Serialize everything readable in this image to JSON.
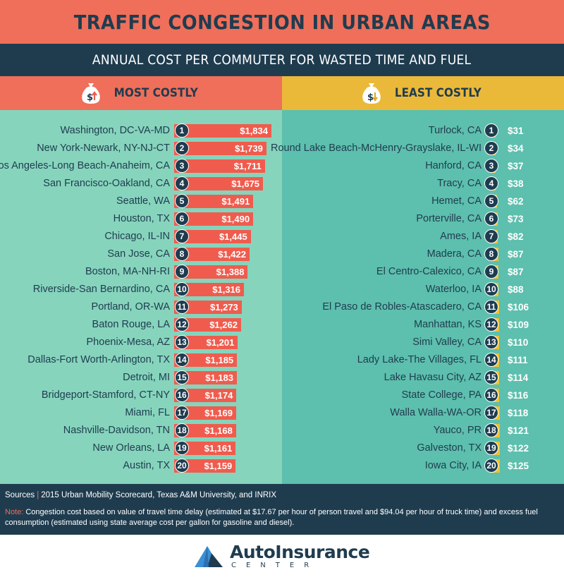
{
  "header": {
    "title": "TRAFFIC CONGESTION IN URBAN AREAS",
    "subtitle": "ANNUAL COST PER COMMUTER FOR WASTED TIME AND FUEL"
  },
  "colors": {
    "title_bg": "#ef6f5a",
    "navy": "#1f3c4f",
    "most_bar": "#ef5c4e",
    "least_bar": "#f0c12f",
    "most_panel": "#86d4bc",
    "least_panel": "#5dbfad",
    "least_header": "#ebb93a"
  },
  "chart_data": [
    {
      "type": "bar",
      "orientation": "horizontal",
      "title": "MOST COSTLY",
      "icon": "money-bag-up-arrow-icon",
      "categories": [
        "Washington, DC-VA-MD",
        "New York-Newark, NY-NJ-CT",
        "Los Angeles-Long Beach-Anaheim, CA",
        "San Francisco-Oakland, CA",
        "Seattle, WA",
        "Houston, TX",
        "Chicago, IL-IN",
        "San Jose, CA",
        "Boston, MA-NH-RI",
        "Riverside-San Bernardino, CA",
        "Portland, OR-WA",
        "Baton Rouge, LA",
        "Phoenix-Mesa, AZ",
        "Dallas-Fort Worth-Arlington, TX",
        "Detroit, MI",
        "Bridgeport-Stamford, CT-NY",
        "Miami, FL",
        "Nashville-Davidson, TN",
        "New Orleans, LA",
        "Austin, TX"
      ],
      "ranks": [
        "1",
        "2",
        "3",
        "4",
        "5",
        "6",
        "7",
        "8",
        "9",
        "10",
        "11",
        "12",
        "13",
        "14",
        "15",
        "16",
        "17",
        "18",
        "19",
        "20"
      ],
      "values": [
        1834,
        1739,
        1711,
        1675,
        1491,
        1490,
        1445,
        1422,
        1388,
        1316,
        1273,
        1262,
        1201,
        1185,
        1183,
        1174,
        1169,
        1168,
        1161,
        1159
      ],
      "value_labels": [
        "$1,834",
        "$1,739",
        "$1,711",
        "$1,675",
        "$1,491",
        "$1,490",
        "$1,445",
        "$1,422",
        "$1,388",
        "$1,316",
        "$1,273",
        "$1,262",
        "$1,201",
        "$1,185",
        "$1,183",
        "$1,174",
        "$1,169",
        "$1,168",
        "$1,161",
        "$1,159"
      ],
      "grid": false
    },
    {
      "type": "bar",
      "orientation": "horizontal",
      "title": "LEAST COSTLY",
      "icon": "money-bag-down-arrow-icon",
      "categories": [
        "Turlock, CA",
        "Round Lake Beach-McHenry-Grayslake, IL-WI",
        "Hanford, CA",
        "Tracy, CA",
        "Hemet, CA",
        "Porterville, CA",
        "Ames, IA",
        "Madera, CA",
        "El Centro-Calexico, CA",
        "Waterloo, IA",
        "El Paso de Robles-Atascadero, CA",
        "Manhattan, KS",
        "Simi Valley, CA",
        "Lady Lake-The Villages, FL",
        "Lake Havasu City, AZ",
        "State College, PA",
        "Walla Walla-WA-OR",
        "Yauco, PR",
        "Galveston, TX",
        "Iowa City, IA"
      ],
      "ranks": [
        "1",
        "2",
        "3",
        "4",
        "5",
        "6",
        "7",
        "8",
        "9",
        "10",
        "11",
        "12",
        "13",
        "14",
        "15",
        "16",
        "17",
        "18",
        "19",
        "20"
      ],
      "values": [
        31,
        34,
        37,
        38,
        62,
        73,
        82,
        87,
        87,
        88,
        106,
        109,
        110,
        111,
        114,
        116,
        118,
        121,
        122,
        125
      ],
      "value_labels": [
        "$31",
        "$34",
        "$37",
        "$38",
        "$62",
        "$73",
        "$82",
        "$87",
        "$87",
        "$88",
        "$106",
        "$109",
        "$110",
        "$111",
        "$114",
        "$116",
        "$118",
        "$121",
        "$122",
        "$125"
      ],
      "grid": false
    }
  ],
  "sources": {
    "label": "Sources",
    "text": "2015 Urban Mobility Scorecard, Texas A&M University, and INRIX",
    "note_label": "Note:",
    "note_text": "Congestion cost based on value of travel time delay (estimated at $17.67 per hour of person travel and $94.04 per hour of truck time) and excess fuel consumption (estimated using state average cost per gallon for gasoline and diesel)."
  },
  "logo": {
    "top": "AutoInsurance",
    "bottom": "CENTER",
    "icon": "mountain-logo-icon"
  }
}
